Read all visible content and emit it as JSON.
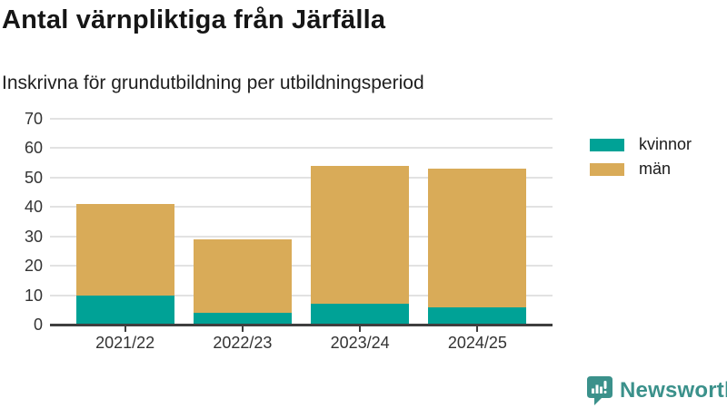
{
  "header": {
    "title": "Antal värnpliktiga från Järfälla",
    "subtitle": "Inskrivna för grundutbildning per utbildningsperiod"
  },
  "chart_data": {
    "type": "bar",
    "stacked": true,
    "title": "Antal värnpliktiga från Järfälla",
    "subtitle": "Inskrivna för grundutbildning per utbildningsperiod",
    "categories": [
      "2021/22",
      "2022/23",
      "2023/24",
      "2024/25"
    ],
    "series": [
      {
        "name": "kvinnor",
        "color": "#00a296",
        "values": [
          10,
          4,
          7,
          6
        ]
      },
      {
        "name": "män",
        "color": "#d9ab58",
        "values": [
          31,
          25,
          47,
          47
        ]
      }
    ],
    "stack_totals": [
      41,
      29,
      54,
      53
    ],
    "xlabel": "",
    "ylabel": "",
    "ylim": [
      0,
      70
    ],
    "yticks": [
      0,
      10,
      20,
      30,
      40,
      50,
      60,
      70
    ],
    "grid": true,
    "legend_position": "right"
  },
  "footer": {
    "brand": "Newsworthy"
  },
  "colors": {
    "kvinnor": "#00a296",
    "men": "#d9ab58",
    "brand": "#3b918b",
    "axis": "#3f3f3f",
    "grid": "#e2e2e2"
  }
}
